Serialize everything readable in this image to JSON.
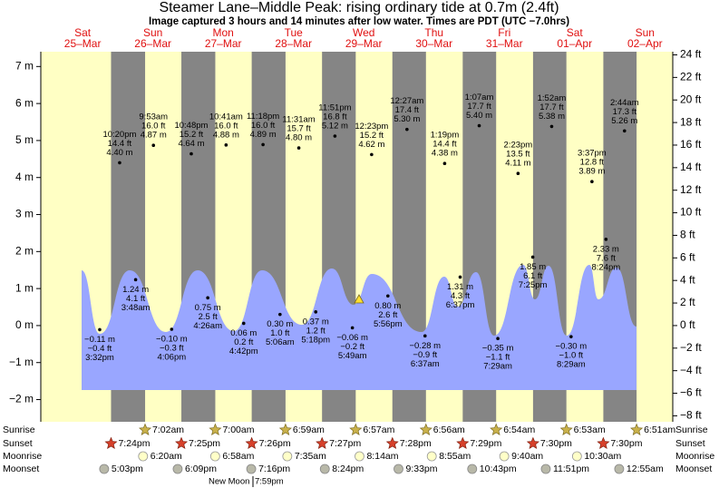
{
  "chart_data": {
    "type": "tide",
    "title": "Steamer Lane–Middle Peak: rising  ordinary tide at 0.7m (2.4ft)",
    "subtitle": "Image captured 3 hours and 14 minutes after low water. Times are PDT (UTC −7.0hrs)",
    "ylim": [
      -2.6,
      7.4
    ],
    "yticks": [
      {
        "value": -2,
        "label": "−2 m"
      },
      {
        "value": -1,
        "label": "−1 m"
      },
      {
        "value": 0,
        "label": "0 m"
      },
      {
        "value": 1,
        "label": "1 m"
      },
      {
        "value": 2,
        "label": "2 m"
      },
      {
        "value": 3,
        "label": "3 m"
      },
      {
        "value": 4,
        "label": "4 m"
      },
      {
        "value": 5,
        "label": "5 m"
      },
      {
        "value": 6,
        "label": "6 m"
      },
      {
        "value": 7,
        "label": "7 m"
      }
    ],
    "y2lim": [
      -8.53,
      24.28
    ],
    "y2ticks": [
      {
        "value": -8,
        "label": "−8 ft"
      },
      {
        "value": -6,
        "label": "−6 ft"
      },
      {
        "value": -4,
        "label": "−4 ft"
      },
      {
        "value": -2,
        "label": "−2 ft"
      },
      {
        "value": 0,
        "label": "0 ft"
      },
      {
        "value": 2,
        "label": "2 ft"
      },
      {
        "value": 4,
        "label": "4 ft"
      },
      {
        "value": 6,
        "label": "6 ft"
      },
      {
        "value": 8,
        "label": "8 ft"
      },
      {
        "value": 10,
        "label": "10 ft"
      },
      {
        "value": 12,
        "label": "12 ft"
      },
      {
        "value": 14,
        "label": "14 ft"
      },
      {
        "value": 16,
        "label": "16 ft"
      },
      {
        "value": 18,
        "label": "18 ft"
      },
      {
        "value": 20,
        "label": "20 ft"
      },
      {
        "value": 22,
        "label": "22 ft"
      },
      {
        "value": 24,
        "label": "24 ft"
      }
    ],
    "colors": {
      "day": "#ffffc4",
      "night": "#858585",
      "point": "#000000",
      "day_label": "#e01010"
    },
    "days": [
      {
        "name": "Sat",
        "date": "25–Mar",
        "tides": [
          {
            "time": "3:32pm",
            "ft": {
              "value": -0.4,
              "label": "−0.4 ft"
            },
            "m": {
              "value": -0.11,
              "label": "−0.11 m"
            }
          },
          {
            "time": "10:20pm",
            "ft": {
              "value": 14.4,
              "label": "14.4 ft"
            },
            "m": {
              "value": 4.4,
              "label": "4.40 m"
            }
          }
        ]
      },
      {
        "name": "Sun",
        "date": "26–Mar",
        "tides": [
          {
            "time": "3:48am",
            "ft": {
              "value": 4.1,
              "label": "4.1 ft"
            },
            "m": {
              "value": 1.24,
              "label": "1.24 m"
            }
          },
          {
            "time": "9:53am",
            "ft": {
              "value": 16.0,
              "label": "16.0 ft"
            },
            "m": {
              "value": 4.87,
              "label": "4.87 m"
            }
          },
          {
            "time": "4:06pm",
            "ft": {
              "value": -0.3,
              "label": "−0.3 ft"
            },
            "m": {
              "value": -0.1,
              "label": "−0.10 m"
            }
          },
          {
            "time": "10:48pm",
            "ft": {
              "value": 15.2,
              "label": "15.2 ft"
            },
            "m": {
              "value": 4.64,
              "label": "4.64 m"
            }
          }
        ]
      },
      {
        "name": "Mon",
        "date": "27–Mar",
        "tides": [
          {
            "time": "4:26am",
            "ft": {
              "value": 2.5,
              "label": "2.5 ft"
            },
            "m": {
              "value": 0.75,
              "label": "0.75 m"
            }
          },
          {
            "time": "10:41am",
            "ft": {
              "value": 16.0,
              "label": "16.0 ft"
            },
            "m": {
              "value": 4.88,
              "label": "4.88 m"
            }
          },
          {
            "time": "4:42pm",
            "ft": {
              "value": 0.2,
              "label": "0.2 ft"
            },
            "m": {
              "value": 0.06,
              "label": "0.06 m"
            }
          },
          {
            "time": "11:18pm",
            "ft": {
              "value": 16.0,
              "label": "16.0 ft"
            },
            "m": {
              "value": 4.89,
              "label": "4.89 m"
            }
          }
        ]
      },
      {
        "name": "Tue",
        "date": "28–Mar",
        "tides": [
          {
            "time": "5:06am",
            "ft": {
              "value": 1.0,
              "label": "1.0 ft"
            },
            "m": {
              "value": 0.3,
              "label": "0.30 m"
            }
          },
          {
            "time": "11:31am",
            "ft": {
              "value": 15.7,
              "label": "15.7 ft"
            },
            "m": {
              "value": 4.8,
              "label": "4.80 m"
            }
          },
          {
            "time": "5:18pm",
            "ft": {
              "value": 1.2,
              "label": "1.2 ft"
            },
            "m": {
              "value": 0.37,
              "label": "0.37 m"
            }
          },
          {
            "time": "11:51pm",
            "ft": {
              "value": 16.8,
              "label": "16.8 ft"
            },
            "m": {
              "value": 5.12,
              "label": "5.12 m"
            }
          }
        ]
      },
      {
        "name": "Wed",
        "date": "29–Mar",
        "tides": [
          {
            "time": "5:49am",
            "ft": {
              "value": -0.2,
              "label": "−0.2 ft"
            },
            "m": {
              "value": -0.06,
              "label": "−0.06 m"
            }
          },
          {
            "time": "12:23pm",
            "ft": {
              "value": 15.2,
              "label": "15.2 ft"
            },
            "m": {
              "value": 4.62,
              "label": "4.62 m"
            }
          },
          {
            "time": "5:56pm",
            "ft": {
              "value": 2.6,
              "label": "2.6 ft"
            },
            "m": {
              "value": 0.8,
              "label": "0.80 m"
            }
          }
        ]
      },
      {
        "name": "Thu",
        "date": "30–Mar",
        "tides": [
          {
            "time": "12:27am",
            "ft": {
              "value": 17.4,
              "label": "17.4 ft"
            },
            "m": {
              "value": 5.3,
              "label": "5.30 m"
            }
          },
          {
            "time": "6:37am",
            "ft": {
              "value": -0.9,
              "label": "−0.9 ft"
            },
            "m": {
              "value": -0.28,
              "label": "−0.28 m"
            }
          },
          {
            "time": "1:19pm",
            "ft": {
              "value": 14.4,
              "label": "14.4 ft"
            },
            "m": {
              "value": 4.38,
              "label": "4.38 m"
            }
          },
          {
            "time": "6:37pm",
            "ft": {
              "value": 4.3,
              "label": "4.3 ft"
            },
            "m": {
              "value": 1.31,
              "label": "1.31 m"
            }
          }
        ]
      },
      {
        "name": "Fri",
        "date": "31–Mar",
        "tides": [
          {
            "time": "1:07am",
            "ft": {
              "value": 17.7,
              "label": "17.7 ft"
            },
            "m": {
              "value": 5.4,
              "label": "5.40 m"
            }
          },
          {
            "time": "7:29am",
            "ft": {
              "value": -1.1,
              "label": "−1.1 ft"
            },
            "m": {
              "value": -0.35,
              "label": "−0.35 m"
            }
          },
          {
            "time": "2:23pm",
            "ft": {
              "value": 13.5,
              "label": "13.5 ft"
            },
            "m": {
              "value": 4.11,
              "label": "4.11 m"
            }
          },
          {
            "time": "7:25pm",
            "ft": {
              "value": 6.1,
              "label": "6.1 ft"
            },
            "m": {
              "value": 1.85,
              "label": "1.85 m"
            }
          }
        ]
      },
      {
        "name": "Sat",
        "date": "01–Apr",
        "tides": [
          {
            "time": "1:52am",
            "ft": {
              "value": 17.7,
              "label": "17.7 ft"
            },
            "m": {
              "value": 5.38,
              "label": "5.38 m"
            }
          },
          {
            "time": "8:29am",
            "ft": {
              "value": -1.0,
              "label": "−1.0 ft"
            },
            "m": {
              "value": -0.3,
              "label": "−0.30 m"
            }
          },
          {
            "time": "3:37pm",
            "ft": {
              "value": 12.8,
              "label": "12.8 ft"
            },
            "m": {
              "value": 3.89,
              "label": "3.89 m"
            }
          },
          {
            "time": "8:24pm",
            "ft": {
              "value": 7.6,
              "label": "7.6 ft"
            },
            "m": {
              "value": 2.33,
              "label": "2.33 m"
            }
          }
        ]
      },
      {
        "name": "Sun",
        "date": "02–Apr",
        "tides": [
          {
            "time": "2:44am",
            "ft": {
              "value": 17.3,
              "label": "17.3 ft"
            },
            "m": {
              "value": 5.26,
              "label": "5.26 m"
            }
          }
        ]
      }
    ],
    "sun_moon": [
      {
        "label": "Sunrise",
        "times": [
          "7:02am",
          "7:00am",
          "6:59am",
          "6:57am",
          "6:56am",
          "6:54am",
          "6:53am",
          "6:51am"
        ]
      },
      {
        "label": "Sunset",
        "times": [
          "7:24pm",
          "7:25pm",
          "7:26pm",
          "7:27pm",
          "7:28pm",
          "7:29pm",
          "7:30pm",
          "7:30pm"
        ]
      },
      {
        "label": "Moonrise",
        "times": [
          "6:20am",
          "6:58am",
          "7:35am",
          "8:14am",
          "8:55am",
          "9:40am",
          "10:30am"
        ]
      },
      {
        "label": "Moonset",
        "times": [
          "5:03pm",
          "6:09pm",
          "7:16pm",
          "8:24pm",
          "9:33pm",
          "10:43pm",
          "11:51pm",
          "12:55am"
        ]
      }
    ],
    "new_moon": {
      "label": "New Moon",
      "time": "7:59pm"
    }
  }
}
